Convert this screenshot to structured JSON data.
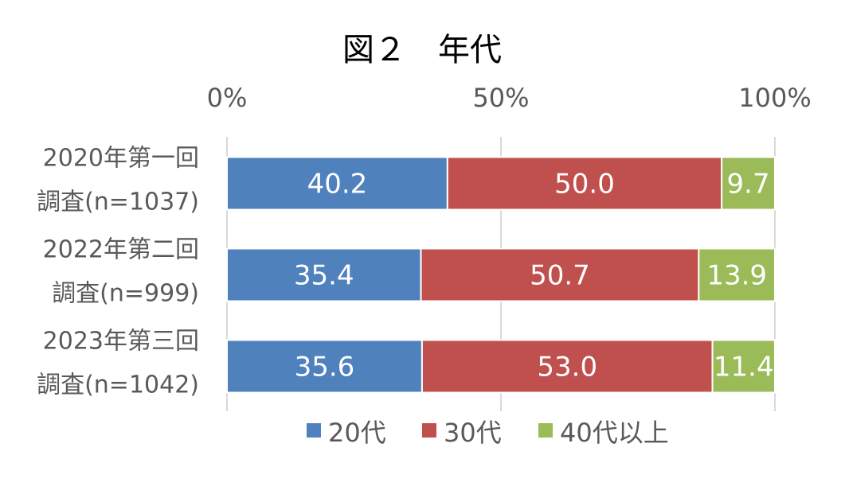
{
  "chart_data": {
    "type": "bar",
    "orientation": "horizontal",
    "stacked": "percent",
    "title": "図２　年代",
    "categories": [
      [
        "2020年第一回",
        "調査(n=1037)"
      ],
      [
        "2022年第二回",
        "調査(n=999)"
      ],
      [
        "2023年第三回",
        "調査(n=1042)"
      ]
    ],
    "xlim": [
      0,
      100
    ],
    "x_ticks": [
      "0%",
      "50%",
      "100%"
    ],
    "x_axis_position": "top",
    "grid": true,
    "legend_position": "bottom",
    "series": [
      {
        "name": "20代",
        "color": "#4F81BD",
        "values": [
          40.2,
          35.4,
          35.6
        ],
        "labels": [
          "40.2",
          "35.4",
          "35.6"
        ]
      },
      {
        "name": "30代",
        "color": "#C0504D",
        "values": [
          50.0,
          50.7,
          53.0
        ],
        "labels": [
          "50.0",
          "50.7",
          "53.0"
        ]
      },
      {
        "name": "40代以上",
        "color": "#9BBB59",
        "values": [
          9.7,
          13.9,
          11.4
        ],
        "labels": [
          "9.7",
          "13.9",
          "11.4"
        ]
      }
    ]
  }
}
